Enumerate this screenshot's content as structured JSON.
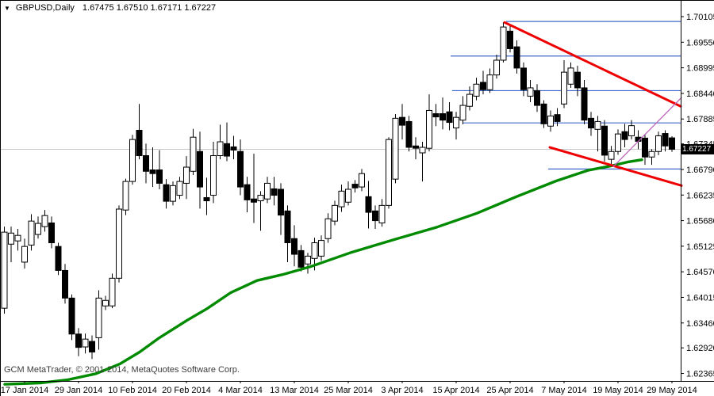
{
  "header": {
    "dropdown_icon": "▼",
    "symbol": "GBPUSD,Daily",
    "open": "1.67475",
    "high": "1.67510",
    "low": "1.67171",
    "close": "1.67227"
  },
  "footer": {
    "copyright": "GCM MetaTrader, © 2001-2014, MetaQuotes Software Corp."
  },
  "axes": {
    "current_price_label": "1.67227"
  },
  "chart_data": {
    "type": "candlestick",
    "title": "GBPUSD,Daily",
    "symbol": "GBPUSD",
    "timeframe": "Daily",
    "current_bar": {
      "open": 1.67475,
      "high": 1.6751,
      "low": 1.67171,
      "close": 1.67227
    },
    "current_price": 1.67227,
    "y_axis_labels": [
      "1.70105",
      "1.69550",
      "1.68995",
      "1.68440",
      "1.67885",
      "1.67345",
      "1.66790",
      "1.66235",
      "1.65680",
      "1.65125",
      "1.64570",
      "1.64015",
      "1.63460",
      "1.62920",
      "1.62365"
    ],
    "x_axis_labels": [
      "17 Jan 2014",
      "29 Jan 2014",
      "10 Feb 2014",
      "20 Feb 2014",
      "4 Mar 2014",
      "13 Mar 2014",
      "25 Mar 2014",
      "3 Apr 2014",
      "15 Apr 2014",
      "25 Apr 2014",
      "7 May 2014",
      "19 May 2014",
      "29 May 2014"
    ],
    "ylim": [
      1.621,
      1.7045
    ],
    "grid": false,
    "legend": "none",
    "colors": {
      "bull_body": "#ffffff",
      "bear_body": "#000000",
      "candle_outline": "#000000",
      "ma": "#008a00",
      "trendline": "#ee0000",
      "projection": "#bb66bb",
      "level": "#4169cd",
      "current_price_line": "#c6c6c6",
      "axis_text": "#000000",
      "background": "#ffffff"
    },
    "candles_ohlc": [
      [
        1.6378,
        1.6555,
        1.6366,
        1.6543
      ],
      [
        1.6517,
        1.6555,
        1.6478,
        1.6541
      ],
      [
        1.6524,
        1.655,
        1.6503,
        1.6536
      ],
      [
        1.6478,
        1.6529,
        1.6464,
        1.6512
      ],
      [
        1.6515,
        1.6582,
        1.6503,
        1.6567
      ],
      [
        1.6538,
        1.6577,
        1.6529,
        1.6562
      ],
      [
        1.6555,
        1.6591,
        1.6544,
        1.6579
      ],
      [
        1.6563,
        1.6577,
        1.6508,
        1.652
      ],
      [
        1.6512,
        1.652,
        1.645,
        1.646
      ],
      [
        1.646,
        1.6474,
        1.6388,
        1.64
      ],
      [
        1.64,
        1.6408,
        1.6309,
        1.6322
      ],
      [
        1.6322,
        1.6335,
        1.6274,
        1.6293
      ],
      [
        1.6294,
        1.6323,
        1.628,
        1.6311
      ],
      [
        1.6306,
        1.6319,
        1.6268,
        1.6283
      ],
      [
        1.6314,
        1.6417,
        1.6288,
        1.64
      ],
      [
        1.6383,
        1.6405,
        1.6374,
        1.6395
      ],
      [
        1.6383,
        1.6453,
        1.6378,
        1.6443
      ],
      [
        1.6443,
        1.6601,
        1.6434,
        1.6593
      ],
      [
        1.6591,
        1.6659,
        1.658,
        1.6653
      ],
      [
        1.6653,
        1.6754,
        1.6646,
        1.6744
      ],
      [
        1.6764,
        1.6821,
        1.6701,
        1.6709
      ],
      [
        1.6709,
        1.6735,
        1.6649,
        1.6675
      ],
      [
        1.6678,
        1.6727,
        1.6641,
        1.667
      ],
      [
        1.6678,
        1.6721,
        1.6636,
        1.6649
      ],
      [
        1.6646,
        1.6658,
        1.6594,
        1.661
      ],
      [
        1.661,
        1.6653,
        1.6601,
        1.6644
      ],
      [
        1.6623,
        1.6663,
        1.6615,
        1.6653
      ],
      [
        1.6649,
        1.6708,
        1.6615,
        1.6684
      ],
      [
        1.6675,
        1.6767,
        1.6667,
        1.6749
      ],
      [
        1.6718,
        1.6761,
        1.6594,
        1.6641
      ],
      [
        1.6618,
        1.6661,
        1.658,
        1.6611
      ],
      [
        1.6623,
        1.6739,
        1.6606,
        1.6709
      ],
      [
        1.6709,
        1.6776,
        1.6701,
        1.6739
      ],
      [
        1.6735,
        1.6781,
        1.6697,
        1.6708
      ],
      [
        1.6728,
        1.6752,
        1.6701,
        1.6721
      ],
      [
        1.6718,
        1.6744,
        1.6623,
        1.6641
      ],
      [
        1.6646,
        1.6663,
        1.6586,
        1.6613
      ],
      [
        1.6615,
        1.6713,
        1.6563,
        1.6608
      ],
      [
        1.6611,
        1.6632,
        1.6546,
        1.6623
      ],
      [
        1.6615,
        1.6663,
        1.6606,
        1.6649
      ],
      [
        1.6637,
        1.6663,
        1.6601,
        1.6623
      ],
      [
        1.6636,
        1.6649,
        1.6537,
        1.658
      ],
      [
        1.6589,
        1.6601,
        1.6478,
        1.652
      ],
      [
        1.6529,
        1.6558,
        1.6469,
        1.6495
      ],
      [
        1.6503,
        1.6515,
        1.6458,
        1.6467
      ],
      [
        1.6474,
        1.6498,
        1.6453,
        1.6491
      ],
      [
        1.6486,
        1.6531,
        1.646,
        1.652
      ],
      [
        1.6491,
        1.6536,
        1.6481,
        1.6525
      ],
      [
        1.6529,
        1.6584,
        1.652,
        1.6572
      ],
      [
        1.6567,
        1.6611,
        1.6558,
        1.6601
      ],
      [
        1.6598,
        1.6646,
        1.6587,
        1.6632
      ],
      [
        1.6608,
        1.6653,
        1.6601,
        1.6636
      ],
      [
        1.6647,
        1.6656,
        1.6629,
        1.6639
      ],
      [
        1.6641,
        1.668,
        1.6632,
        1.667
      ],
      [
        1.662,
        1.6654,
        1.6551,
        1.6586
      ],
      [
        1.6589,
        1.6601,
        1.655,
        1.6568
      ],
      [
        1.6563,
        1.6615,
        1.6555,
        1.6601
      ],
      [
        1.6601,
        1.6749,
        1.6594,
        1.6744
      ],
      [
        1.6658,
        1.6799,
        1.6649,
        1.679
      ],
      [
        1.6792,
        1.6821,
        1.6744,
        1.6775
      ],
      [
        1.6783,
        1.6795,
        1.6718,
        1.6727
      ],
      [
        1.673,
        1.6749,
        1.6701,
        1.6725
      ],
      [
        1.6715,
        1.6739,
        1.6653,
        1.6727
      ],
      [
        1.6725,
        1.6842,
        1.6718,
        1.6807
      ],
      [
        1.68,
        1.6821,
        1.6773,
        1.6793
      ],
      [
        1.68,
        1.6835,
        1.6766,
        1.6786
      ],
      [
        1.6804,
        1.6825,
        1.6764,
        1.6781
      ],
      [
        1.6769,
        1.6804,
        1.6744,
        1.6792
      ],
      [
        1.6786,
        1.6838,
        1.6777,
        1.6818
      ],
      [
        1.6816,
        1.6859,
        1.6807,
        1.6842
      ],
      [
        1.6838,
        1.6878,
        1.6829,
        1.6864
      ],
      [
        1.6868,
        1.6893,
        1.6842,
        1.6852
      ],
      [
        1.6852,
        1.6898,
        1.6845,
        1.6884
      ],
      [
        1.6884,
        1.6928,
        1.6876,
        1.6916
      ],
      [
        1.6916,
        1.6998,
        1.6911,
        1.6988
      ],
      [
        1.6979,
        1.6993,
        1.6933,
        1.6941
      ],
      [
        1.6945,
        1.6959,
        1.6887,
        1.6899
      ],
      [
        1.6899,
        1.6911,
        1.6838,
        1.6852
      ],
      [
        1.6838,
        1.6873,
        1.6825,
        1.6856
      ],
      [
        1.685,
        1.6864,
        1.6804,
        1.6818
      ],
      [
        1.6821,
        1.6829,
        1.6769,
        1.6778
      ],
      [
        1.6773,
        1.6807,
        1.6761,
        1.6795
      ],
      [
        1.6798,
        1.6812,
        1.6773,
        1.6783
      ],
      [
        1.6821,
        1.6916,
        1.6812,
        1.689
      ],
      [
        1.6864,
        1.6911,
        1.6856,
        1.6899
      ],
      [
        1.689,
        1.6904,
        1.6838,
        1.6856
      ],
      [
        1.6856,
        1.6873,
        1.6777,
        1.6786
      ],
      [
        1.679,
        1.6804,
        1.6752,
        1.6769
      ],
      [
        1.6766,
        1.6795,
        1.6718,
        1.6783
      ],
      [
        1.6773,
        1.6786,
        1.6696,
        1.671
      ],
      [
        1.6701,
        1.673,
        1.6687,
        1.6718
      ],
      [
        1.6718,
        1.6766,
        1.6711,
        1.6756
      ],
      [
        1.6761,
        1.6778,
        1.6727,
        1.6744
      ],
      [
        1.6752,
        1.6786,
        1.6744,
        1.6774
      ],
      [
        1.6749,
        1.6764,
        1.6723,
        1.674
      ],
      [
        1.6747,
        1.6756,
        1.6689,
        1.6706
      ],
      [
        1.6706,
        1.6723,
        1.6689,
        1.6718
      ],
      [
        1.6718,
        1.6761,
        1.671,
        1.6752
      ],
      [
        1.6757,
        1.6764,
        1.6718,
        1.673
      ],
      [
        1.67475,
        1.6751,
        1.67171,
        1.67227
      ]
    ],
    "moving_average": {
      "name": "SMA",
      "points": [
        {
          "x": 5,
          "price": 1.6213
        },
        {
          "x": 50,
          "price": 1.6216
        },
        {
          "x": 85,
          "price": 1.6223
        },
        {
          "x": 120,
          "price": 1.6236
        },
        {
          "x": 150,
          "price": 1.6257
        },
        {
          "x": 175,
          "price": 1.6283
        },
        {
          "x": 200,
          "price": 1.6314
        },
        {
          "x": 235,
          "price": 1.6352
        },
        {
          "x": 260,
          "price": 1.6377
        },
        {
          "x": 290,
          "price": 1.6412
        },
        {
          "x": 323,
          "price": 1.6438
        },
        {
          "x": 355,
          "price": 1.6451
        },
        {
          "x": 390,
          "price": 1.6468
        },
        {
          "x": 440,
          "price": 1.6498
        },
        {
          "x": 500,
          "price": 1.6529
        },
        {
          "x": 550,
          "price": 1.6554
        },
        {
          "x": 600,
          "price": 1.6584
        },
        {
          "x": 650,
          "price": 1.662
        },
        {
          "x": 700,
          "price": 1.6654
        },
        {
          "x": 740,
          "price": 1.6677
        },
        {
          "x": 770,
          "price": 1.6687
        },
        {
          "x": 790,
          "price": 1.6695
        },
        {
          "x": 808,
          "price": 1.67
        }
      ]
    },
    "trendlines": [
      {
        "name": "upper-descending",
        "x1": 635,
        "price1": 1.6998,
        "x2": 857,
        "price2": 1.6816,
        "width": 3,
        "colorKey": "trendline"
      },
      {
        "name": "lower-descending",
        "x1": 692,
        "price1": 1.6727,
        "x2": 858,
        "price2": 1.6644,
        "width": 3,
        "colorKey": "trendline"
      },
      {
        "name": "projection",
        "x1": 772,
        "price1": 1.6685,
        "x2": 858,
        "price2": 1.6835,
        "width": 1.3,
        "colorKey": "projection"
      }
    ],
    "horizontal_levels": [
      {
        "price": 1.7,
        "x1": 637
      },
      {
        "price": 1.6925,
        "x1": 567
      },
      {
        "price": 1.685,
        "x1": 569
      },
      {
        "price": 1.678,
        "x1": 583
      },
      {
        "price": 1.668,
        "x1": 690
      }
    ]
  }
}
